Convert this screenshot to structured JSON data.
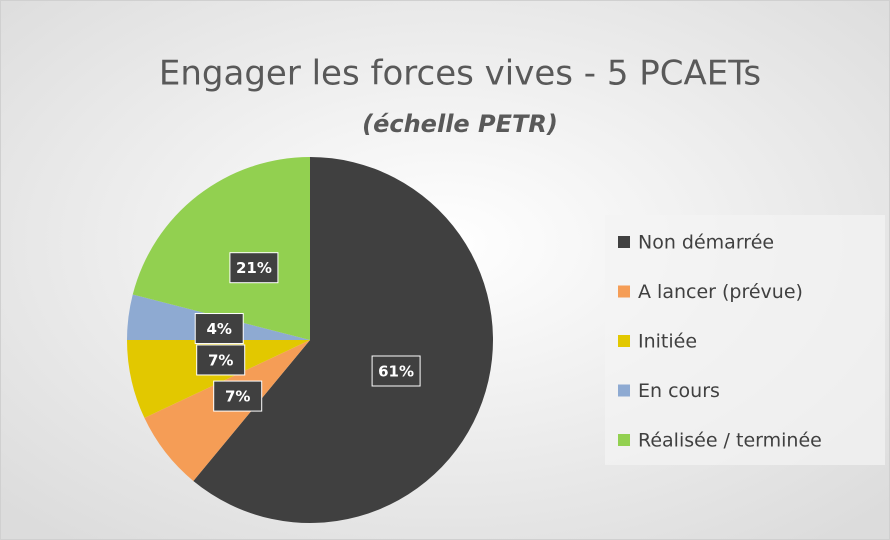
{
  "chart_data": {
    "type": "pie",
    "title": "Engager les forces vives - 5 PCAETs",
    "subtitle": "(échelle PETR)",
    "categories": [
      "Non démarrée",
      "A lancer (prévue)",
      "Initiée",
      "En cours",
      "Réalisée / terminée"
    ],
    "values": [
      61,
      7,
      7,
      4,
      21
    ],
    "value_labels": [
      "61%",
      "7%",
      "7%",
      "4%",
      "21%"
    ],
    "colors": [
      "#404040",
      "#f59d56",
      "#e2c800",
      "#8eaad2",
      "#92d050"
    ],
    "legend": "right"
  }
}
